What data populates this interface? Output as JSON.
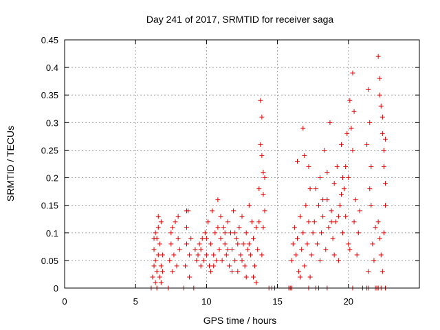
{
  "chart_data": {
    "type": "scatter",
    "title": "Day 241 of 2017, SRMTID for receiver saga",
    "xlabel": "GPS time / hours",
    "ylabel": "SRMTID / TECUs",
    "xlim": [
      0,
      25
    ],
    "ylim": [
      0,
      0.45
    ],
    "xticks": [
      "0",
      "5",
      "10",
      "15",
      "20"
    ],
    "yticks": [
      "0",
      "0.05",
      "0.1",
      "0.15",
      "0.2",
      "0.25",
      "0.3",
      "0.35",
      "0.4",
      "0.45"
    ],
    "grid": true,
    "marker": "+",
    "color": "#e00000",
    "series": [
      {
        "name": "SRMTID",
        "points": [
          [
            6.1,
            0.0
          ],
          [
            6.5,
            0.0
          ],
          [
            7.3,
            0.0
          ],
          [
            8.4,
            0.0
          ],
          [
            9.1,
            0.0
          ],
          [
            14.4,
            0.0
          ],
          [
            14.6,
            0.0
          ],
          [
            14.8,
            0.0
          ],
          [
            15.8,
            0.0
          ],
          [
            15.9,
            0.0
          ],
          [
            16.0,
            0.0
          ],
          [
            17.2,
            0.0
          ],
          [
            17.7,
            0.0
          ],
          [
            17.9,
            0.0
          ],
          [
            18.5,
            0.0
          ],
          [
            20.3,
            0.0
          ],
          [
            21.0,
            0.0
          ],
          [
            21.3,
            0.0
          ],
          [
            21.4,
            0.0
          ],
          [
            21.9,
            0.0
          ],
          [
            22.0,
            0.0
          ],
          [
            22.1,
            0.0
          ],
          [
            22.3,
            0.0
          ],
          [
            22.6,
            0.0
          ],
          [
            6.2,
            0.02
          ],
          [
            6.3,
            0.04
          ],
          [
            6.3,
            0.07
          ],
          [
            6.4,
            0.01
          ],
          [
            6.4,
            0.05
          ],
          [
            6.5,
            0.09
          ],
          [
            6.5,
            0.03
          ],
          [
            6.6,
            0.06
          ],
          [
            6.6,
            0.11
          ],
          [
            6.7,
            0.02
          ],
          [
            6.7,
            0.08
          ],
          [
            6.8,
            0.04
          ],
          [
            6.8,
            0.12
          ],
          [
            6.9,
            0.06
          ],
          [
            6.9,
            0.03
          ],
          [
            6.3,
            0.09
          ],
          [
            6.4,
            0.1
          ],
          [
            6.6,
            0.13
          ],
          [
            6.8,
            0.01
          ],
          [
            7.4,
            0.05
          ],
          [
            7.5,
            0.08
          ],
          [
            7.5,
            0.1
          ],
          [
            7.6,
            0.03
          ],
          [
            7.7,
            0.06
          ],
          [
            7.8,
            0.12
          ],
          [
            7.9,
            0.04
          ],
          [
            8.0,
            0.09
          ],
          [
            8.0,
            0.13
          ],
          [
            8.1,
            0.07
          ],
          [
            7.6,
            0.11
          ],
          [
            8.5,
            0.04
          ],
          [
            8.6,
            0.08
          ],
          [
            8.6,
            0.11
          ],
          [
            8.7,
            0.14
          ],
          [
            8.8,
            0.06
          ],
          [
            8.8,
            0.02
          ],
          [
            8.6,
            0.14
          ],
          [
            8.9,
            0.09
          ],
          [
            9.2,
            0.07
          ],
          [
            9.3,
            0.05
          ],
          [
            9.4,
            0.06
          ],
          [
            9.5,
            0.08
          ],
          [
            9.6,
            0.04
          ],
          [
            9.7,
            0.09
          ],
          [
            9.8,
            0.05
          ],
          [
            9.9,
            0.1
          ],
          [
            10.0,
            0.06
          ],
          [
            10.1,
            0.12
          ],
          [
            10.2,
            0.04
          ],
          [
            10.3,
            0.08
          ],
          [
            10.4,
            0.14
          ],
          [
            10.5,
            0.06
          ],
          [
            10.6,
            0.1
          ],
          [
            10.7,
            0.05
          ],
          [
            10.8,
            0.16
          ],
          [
            10.9,
            0.07
          ],
          [
            11.0,
            0.09
          ],
          [
            11.1,
            0.05
          ],
          [
            11.2,
            0.11
          ],
          [
            11.3,
            0.08
          ],
          [
            11.4,
            0.06
          ],
          [
            11.5,
            0.12
          ],
          [
            11.6,
            0.04
          ],
          [
            11.7,
            0.1
          ],
          [
            11.8,
            0.07
          ],
          [
            11.9,
            0.14
          ],
          [
            12.0,
            0.05
          ],
          [
            12.1,
            0.09
          ],
          [
            12.2,
            0.03
          ],
          [
            12.3,
            0.11
          ],
          [
            12.4,
            0.06
          ],
          [
            12.5,
            0.13
          ],
          [
            12.6,
            0.08
          ],
          [
            12.7,
            0.04
          ],
          [
            12.8,
            0.1
          ],
          [
            12.9,
            0.07
          ],
          [
            13.0,
            0.15
          ],
          [
            13.1,
            0.06
          ],
          [
            13.2,
            0.12
          ],
          [
            13.3,
            0.09
          ],
          [
            13.4,
            0.04
          ],
          [
            13.5,
            0.11
          ],
          [
            13.6,
            0.07
          ],
          [
            9.6,
            0.07
          ],
          [
            10.0,
            0.09
          ],
          [
            10.5,
            0.04
          ],
          [
            11.0,
            0.13
          ],
          [
            11.5,
            0.07
          ],
          [
            12.0,
            0.1
          ],
          [
            12.5,
            0.05
          ],
          [
            13.0,
            0.08
          ],
          [
            13.3,
            0.02
          ],
          [
            10.3,
            0.03
          ],
          [
            11.8,
            0.03
          ],
          [
            12.8,
            0.02
          ],
          [
            13.5,
            0.01
          ],
          [
            10.8,
            0.11
          ],
          [
            11.3,
            0.1
          ],
          [
            12.2,
            0.08
          ],
          [
            13.7,
            0.18
          ],
          [
            13.8,
            0.34
          ],
          [
            13.8,
            0.26
          ],
          [
            13.9,
            0.24
          ],
          [
            13.9,
            0.31
          ],
          [
            14.0,
            0.21
          ],
          [
            14.0,
            0.17
          ],
          [
            14.1,
            0.14
          ],
          [
            14.1,
            0.2
          ],
          [
            13.7,
            0.12
          ],
          [
            14.0,
            0.11
          ],
          [
            13.9,
            0.06
          ],
          [
            16.0,
            0.05
          ],
          [
            16.1,
            0.08
          ],
          [
            16.2,
            0.11
          ],
          [
            16.3,
            0.06
          ],
          [
            16.4,
            0.09
          ],
          [
            16.5,
            0.03
          ],
          [
            16.6,
            0.13
          ],
          [
            16.7,
            0.07
          ],
          [
            16.8,
            0.1
          ],
          [
            16.9,
            0.04
          ],
          [
            17.0,
            0.15
          ],
          [
            17.1,
            0.08
          ],
          [
            17.2,
            0.12
          ],
          [
            17.3,
            0.18
          ],
          [
            17.4,
            0.06
          ],
          [
            17.5,
            0.1
          ],
          [
            16.8,
            0.29
          ],
          [
            16.9,
            0.24
          ],
          [
            17.2,
            0.22
          ],
          [
            16.4,
            0.23
          ],
          [
            17.3,
            0.02
          ],
          [
            16.6,
            0.02
          ],
          [
            17.6,
            0.12
          ],
          [
            17.7,
            0.18
          ],
          [
            17.8,
            0.08
          ],
          [
            17.9,
            0.15
          ],
          [
            18.0,
            0.2
          ],
          [
            18.1,
            0.1
          ],
          [
            18.2,
            0.13
          ],
          [
            18.3,
            0.25
          ],
          [
            18.4,
            0.07
          ],
          [
            18.5,
            0.16
          ],
          [
            18.6,
            0.11
          ],
          [
            18.7,
            0.3
          ],
          [
            18.8,
            0.14
          ],
          [
            18.9,
            0.09
          ],
          [
            19.0,
            0.19
          ],
          [
            19.1,
            0.12
          ],
          [
            19.2,
            0.22
          ],
          [
            19.3,
            0.05
          ],
          [
            19.4,
            0.15
          ],
          [
            19.5,
            0.26
          ],
          [
            19.6,
            0.1
          ],
          [
            19.7,
            0.18
          ],
          [
            19.8,
            0.13
          ],
          [
            19.9,
            0.28
          ],
          [
            20.0,
            0.08
          ],
          [
            18.0,
            0.05
          ],
          [
            18.5,
            0.21
          ],
          [
            19.0,
            0.06
          ],
          [
            19.5,
            0.17
          ],
          [
            19.8,
            0.22
          ],
          [
            18.2,
            0.16
          ],
          [
            18.8,
            0.12
          ],
          [
            19.3,
            0.13
          ],
          [
            19.6,
            0.2
          ],
          [
            20.0,
            0.2
          ],
          [
            20.1,
            0.34
          ],
          [
            20.2,
            0.29
          ],
          [
            20.3,
            0.39
          ],
          [
            20.3,
            0.25
          ],
          [
            20.4,
            0.12
          ],
          [
            20.5,
            0.16
          ],
          [
            20.6,
            0.06
          ],
          [
            20.7,
            0.1
          ],
          [
            20.8,
            0.14
          ],
          [
            20.1,
            0.07
          ],
          [
            20.4,
            0.32
          ],
          [
            21.3,
            0.26
          ],
          [
            21.4,
            0.36
          ],
          [
            21.5,
            0.3
          ],
          [
            21.5,
            0.18
          ],
          [
            21.6,
            0.15
          ],
          [
            21.7,
            0.08
          ],
          [
            21.8,
            0.05
          ],
          [
            21.6,
            0.22
          ],
          [
            21.9,
            0.11
          ],
          [
            21.4,
            0.03
          ],
          [
            22.1,
            0.42
          ],
          [
            22.2,
            0.38
          ],
          [
            22.2,
            0.35
          ],
          [
            22.3,
            0.33
          ],
          [
            22.4,
            0.31
          ],
          [
            22.4,
            0.28
          ],
          [
            22.5,
            0.25
          ],
          [
            22.5,
            0.22
          ],
          [
            22.6,
            0.19
          ],
          [
            22.6,
            0.15
          ],
          [
            22.1,
            0.12
          ],
          [
            22.2,
            0.09
          ],
          [
            22.3,
            0.06
          ],
          [
            22.4,
            0.03
          ],
          [
            22.5,
            0.1
          ],
          [
            22.6,
            0.27
          ]
        ]
      }
    ]
  }
}
